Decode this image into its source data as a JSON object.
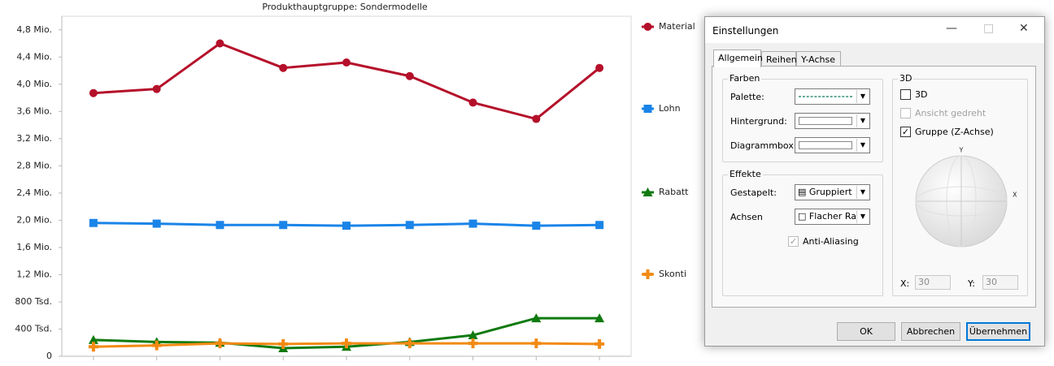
{
  "chart_data": {
    "type": "line",
    "title": "Produkthauptgruppe: Sondermodelle",
    "categories": [
      null,
      null,
      null,
      null,
      null,
      null,
      null,
      null,
      null
    ],
    "series": [
      {
        "name": "Material",
        "color": "#b5102a",
        "marker": "circle",
        "values": [
          3870000,
          3930000,
          4600000,
          4240000,
          4320000,
          4120000,
          3730000,
          3490000,
          4240000
        ]
      },
      {
        "name": "Lohn",
        "color": "#1a84e8",
        "marker": "square",
        "values": [
          1960000,
          1950000,
          1930000,
          1930000,
          1920000,
          1930000,
          1950000,
          1920000,
          1930000
        ]
      },
      {
        "name": "Rabatt",
        "color": "#0f7a0f",
        "marker": "triangle",
        "values": [
          240000,
          210000,
          200000,
          120000,
          140000,
          210000,
          310000,
          560000,
          560000
        ]
      },
      {
        "name": "Skonti",
        "color": "#f28a14",
        "marker": "plus",
        "values": [
          140000,
          160000,
          190000,
          180000,
          190000,
          190000,
          190000,
          190000,
          180000
        ]
      }
    ],
    "ylim": [
      0,
      5000000
    ],
    "yticks": [
      0,
      {
        "value": 400000,
        "label": "400 Tsd."
      },
      {
        "value": 800000,
        "label": "800 Tsd."
      },
      {
        "value": 1200000,
        "label": "1,2 Mio."
      },
      {
        "value": 1600000,
        "label": "1,6 Mio."
      },
      {
        "value": 2000000,
        "label": "2,0 Mio."
      },
      {
        "value": 2400000,
        "label": "2,4 Mio."
      },
      {
        "value": 2800000,
        "label": "2,8 Mio."
      },
      {
        "value": 3200000,
        "label": "3,2 Mio."
      },
      {
        "value": 3600000,
        "label": "3,6 Mio."
      },
      {
        "value": 4000000,
        "label": "4,0 Mio."
      },
      {
        "value": 4400000,
        "label": "4,4 Mio."
      },
      {
        "value": 4800000,
        "label": "4,8 Mio."
      }
    ],
    "grid": false,
    "legend": "right"
  },
  "dialog": {
    "title": "Einstellungen",
    "tabs": [
      "Allgemein",
      "Reihen",
      "Y-Achse"
    ],
    "farben": {
      "title": "Farben",
      "palette": "Palette:",
      "hintergrund": "Hintergrund:",
      "diagrammbox": "Diagrammbox:"
    },
    "effekte": {
      "title": "Effekte",
      "gestapelt": "Gestapelt:",
      "gestapelt_value": "Gruppiert",
      "achsen": "Achsen",
      "achsen_value": "Flacher Ra",
      "anti_aliasing": "Anti-Aliasing"
    },
    "three_d": {
      "title": "3D",
      "check_3d": "3D",
      "ansicht": "Ansicht gedreht",
      "gruppe": "Gruppe (Z-Achse)",
      "axis_y": "Y",
      "axis_x": "X",
      "x_label": "X:",
      "x_value": 30,
      "y_label": "Y:",
      "y_value": 30
    },
    "buttons": [
      "OK",
      "Abbrechen",
      "Übernehmen"
    ]
  }
}
